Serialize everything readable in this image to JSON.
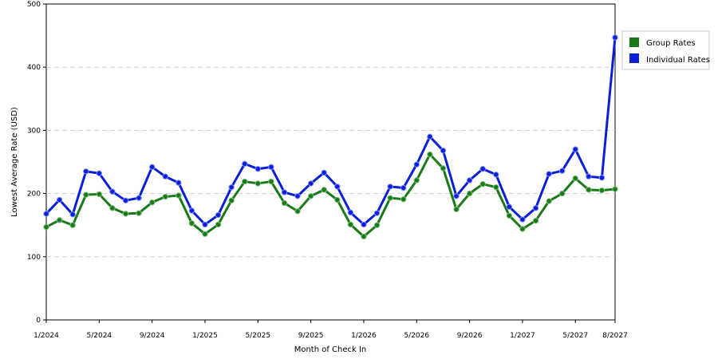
{
  "chart_data": {
    "type": "line",
    "title": "",
    "xlabel": "Month of Check In",
    "ylabel": "Lowest Average Rate (USD)",
    "ylim": [
      0,
      500
    ],
    "yticks": [
      0,
      100,
      200,
      300,
      400,
      500
    ],
    "x": [
      "1/2024",
      "2/2024",
      "3/2024",
      "4/2024",
      "5/2024",
      "6/2024",
      "7/2024",
      "8/2024",
      "9/2024",
      "10/2024",
      "11/2024",
      "12/2024",
      "1/2025",
      "2/2025",
      "3/2025",
      "4/2025",
      "5/2025",
      "6/2025",
      "7/2025",
      "8/2025",
      "9/2025",
      "10/2025",
      "11/2025",
      "12/2025",
      "1/2026",
      "2/2026",
      "3/2026",
      "4/2026",
      "5/2026",
      "6/2026",
      "7/2026",
      "8/2026",
      "9/2026",
      "10/2026",
      "11/2026",
      "12/2026",
      "1/2027",
      "2/2027",
      "3/2027",
      "4/2027",
      "5/2027",
      "6/2027",
      "7/2027",
      "8/2027"
    ],
    "xtick_labels": [
      "1/2024",
      "5/2024",
      "9/2024",
      "1/2025",
      "5/2025",
      "9/2025",
      "1/2026",
      "5/2026",
      "9/2026",
      "1/2027",
      "5/2027",
      "8/2027"
    ],
    "grid": true,
    "legend_position": "right",
    "series": [
      {
        "name": "Group Rates",
        "color": "#1a7a1a",
        "values": [
          147,
          158,
          150,
          198,
          199,
          177,
          168,
          169,
          186,
          195,
          197,
          153,
          136,
          151,
          189,
          219,
          216,
          219,
          185,
          172,
          196,
          206,
          190,
          151,
          132,
          150,
          193,
          191,
          221,
          262,
          240,
          175,
          200,
          215,
          210,
          165,
          144,
          157,
          188,
          200,
          224,
          206,
          205,
          207
        ]
      },
      {
        "name": "Individual Rates",
        "color": "#0a1fd6",
        "values": [
          168,
          190,
          167,
          235,
          232,
          203,
          189,
          193,
          242,
          227,
          217,
          173,
          151,
          166,
          210,
          247,
          239,
          242,
          202,
          196,
          216,
          233,
          211,
          170,
          151,
          169,
          211,
          209,
          246,
          290,
          268,
          196,
          221,
          239,
          230,
          179,
          159,
          177,
          231,
          236,
          270,
          227,
          225,
          447
        ]
      }
    ]
  }
}
